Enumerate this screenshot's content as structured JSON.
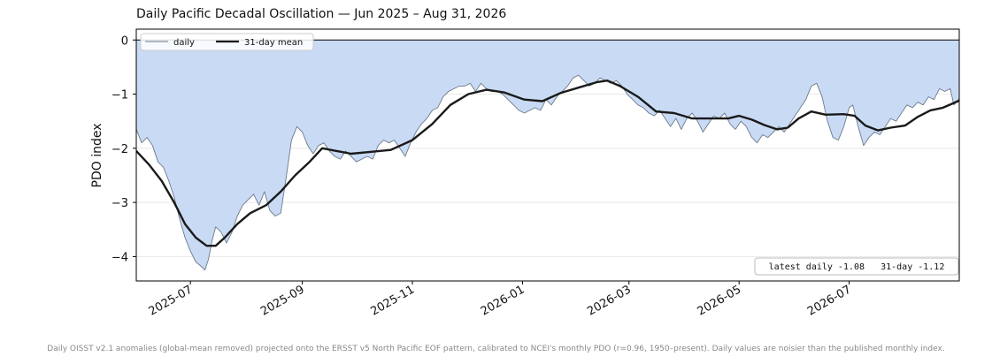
{
  "title": "Daily Pacific Decadal Oscillation — Jun 2025 – Aug 31, 2026",
  "footnote": "Daily OISST v2.1 anomalies (global-mean removed) projected onto the ERSST v5 North Pacific EOF pattern, calibrated to NCEI's monthly PDO (r=0.96, 1950–present). Daily values are noisier than the published monthly index.",
  "chart_data": {
    "type": "area",
    "ylabel": "PDO index",
    "xlim": [
      "2025-06-01",
      "2026-08-31"
    ],
    "ylim": [
      -4.45,
      0.2
    ],
    "yticks": [
      0,
      -1,
      -2,
      -3,
      -4
    ],
    "xticks": [
      "2025-07",
      "2025-09",
      "2025-11",
      "2026-01",
      "2026-03",
      "2026-05",
      "2026-07"
    ],
    "grid": "horizontal",
    "legend": {
      "position": "top-left",
      "entries": [
        "daily",
        "31-day mean"
      ]
    },
    "annotation": "latest daily -1.08   31-day -1.12",
    "colors": {
      "fill": "#c9daf4",
      "daily_line": "#6b7a8c",
      "mean_line": "#1a1a1a",
      "axis": "#000000",
      "grid": "#e8e8e8"
    },
    "series": [
      {
        "name": "daily",
        "points": [
          [
            "2025-06-01",
            -1.65
          ],
          [
            "2025-06-04",
            -1.9
          ],
          [
            "2025-06-07",
            -1.8
          ],
          [
            "2025-06-10",
            -1.95
          ],
          [
            "2025-06-13",
            -2.25
          ],
          [
            "2025-06-16",
            -2.35
          ],
          [
            "2025-06-19",
            -2.6
          ],
          [
            "2025-06-22",
            -2.9
          ],
          [
            "2025-06-25",
            -3.3
          ],
          [
            "2025-06-28",
            -3.65
          ],
          [
            "2025-07-01",
            -3.9
          ],
          [
            "2025-07-04",
            -4.1
          ],
          [
            "2025-07-07",
            -4.18
          ],
          [
            "2025-07-09",
            -4.25
          ],
          [
            "2025-07-11",
            -4.05
          ],
          [
            "2025-07-13",
            -3.7
          ],
          [
            "2025-07-15",
            -3.45
          ],
          [
            "2025-07-18",
            -3.55
          ],
          [
            "2025-07-21",
            -3.75
          ],
          [
            "2025-07-24",
            -3.55
          ],
          [
            "2025-07-27",
            -3.25
          ],
          [
            "2025-07-30",
            -3.05
          ],
          [
            "2025-08-02",
            -2.95
          ],
          [
            "2025-08-05",
            -2.85
          ],
          [
            "2025-08-08",
            -3.05
          ],
          [
            "2025-08-11",
            -2.8
          ],
          [
            "2025-08-14",
            -3.15
          ],
          [
            "2025-08-17",
            -3.25
          ],
          [
            "2025-08-20",
            -3.2
          ],
          [
            "2025-08-23",
            -2.55
          ],
          [
            "2025-08-26",
            -1.85
          ],
          [
            "2025-08-29",
            -1.6
          ],
          [
            "2025-09-01",
            -1.7
          ],
          [
            "2025-09-04",
            -1.95
          ],
          [
            "2025-09-07",
            -2.1
          ],
          [
            "2025-09-10",
            -1.95
          ],
          [
            "2025-09-13",
            -1.9
          ],
          [
            "2025-09-16",
            -2.05
          ],
          [
            "2025-09-19",
            -2.15
          ],
          [
            "2025-09-22",
            -2.2
          ],
          [
            "2025-09-25",
            -2.05
          ],
          [
            "2025-09-28",
            -2.15
          ],
          [
            "2025-10-01",
            -2.25
          ],
          [
            "2025-10-04",
            -2.2
          ],
          [
            "2025-10-07",
            -2.15
          ],
          [
            "2025-10-10",
            -2.2
          ],
          [
            "2025-10-13",
            -1.95
          ],
          [
            "2025-10-16",
            -1.85
          ],
          [
            "2025-10-19",
            -1.9
          ],
          [
            "2025-10-22",
            -1.85
          ],
          [
            "2025-10-25",
            -2.0
          ],
          [
            "2025-10-28",
            -2.15
          ],
          [
            "2025-10-31",
            -1.9
          ],
          [
            "2025-11-03",
            -1.7
          ],
          [
            "2025-11-06",
            -1.55
          ],
          [
            "2025-11-09",
            -1.45
          ],
          [
            "2025-11-12",
            -1.3
          ],
          [
            "2025-11-15",
            -1.25
          ],
          [
            "2025-11-18",
            -1.05
          ],
          [
            "2025-11-21",
            -0.95
          ],
          [
            "2025-11-24",
            -0.9
          ],
          [
            "2025-11-27",
            -0.85
          ],
          [
            "2025-11-30",
            -0.85
          ],
          [
            "2025-12-03",
            -0.8
          ],
          [
            "2025-12-06",
            -0.95
          ],
          [
            "2025-12-09",
            -0.8
          ],
          [
            "2025-12-12",
            -0.9
          ],
          [
            "2025-12-15",
            -0.95
          ],
          [
            "2025-12-18",
            -0.95
          ],
          [
            "2025-12-21",
            -1.0
          ],
          [
            "2025-12-24",
            -1.1
          ],
          [
            "2025-12-27",
            -1.2
          ],
          [
            "2025-12-30",
            -1.3
          ],
          [
            "2026-01-02",
            -1.35
          ],
          [
            "2026-01-05",
            -1.3
          ],
          [
            "2026-01-08",
            -1.25
          ],
          [
            "2026-01-11",
            -1.3
          ],
          [
            "2026-01-14",
            -1.1
          ],
          [
            "2026-01-17",
            -1.2
          ],
          [
            "2026-01-20",
            -1.05
          ],
          [
            "2026-01-23",
            -0.95
          ],
          [
            "2026-01-26",
            -0.85
          ],
          [
            "2026-01-29",
            -0.7
          ],
          [
            "2026-02-01",
            -0.65
          ],
          [
            "2026-02-04",
            -0.75
          ],
          [
            "2026-02-07",
            -0.85
          ],
          [
            "2026-02-10",
            -0.8
          ],
          [
            "2026-02-13",
            -0.7
          ],
          [
            "2026-02-16",
            -0.75
          ],
          [
            "2026-02-19",
            -0.8
          ],
          [
            "2026-02-22",
            -0.75
          ],
          [
            "2026-02-25",
            -0.85
          ],
          [
            "2026-02-28",
            -1.0
          ],
          [
            "2026-03-03",
            -1.1
          ],
          [
            "2026-03-06",
            -1.2
          ],
          [
            "2026-03-09",
            -1.25
          ],
          [
            "2026-03-12",
            -1.35
          ],
          [
            "2026-03-15",
            -1.4
          ],
          [
            "2026-03-18",
            -1.3
          ],
          [
            "2026-03-21",
            -1.45
          ],
          [
            "2026-03-24",
            -1.6
          ],
          [
            "2026-03-27",
            -1.45
          ],
          [
            "2026-03-30",
            -1.65
          ],
          [
            "2026-04-02",
            -1.45
          ],
          [
            "2026-04-05",
            -1.35
          ],
          [
            "2026-04-08",
            -1.5
          ],
          [
            "2026-04-11",
            -1.7
          ],
          [
            "2026-04-14",
            -1.55
          ],
          [
            "2026-04-17",
            -1.4
          ],
          [
            "2026-04-20",
            -1.45
          ],
          [
            "2026-04-23",
            -1.35
          ],
          [
            "2026-04-26",
            -1.55
          ],
          [
            "2026-04-29",
            -1.65
          ],
          [
            "2026-05-02",
            -1.5
          ],
          [
            "2026-05-05",
            -1.6
          ],
          [
            "2026-05-08",
            -1.8
          ],
          [
            "2026-05-11",
            -1.9
          ],
          [
            "2026-05-14",
            -1.75
          ],
          [
            "2026-05-17",
            -1.8
          ],
          [
            "2026-05-20",
            -1.7
          ],
          [
            "2026-05-23",
            -1.6
          ],
          [
            "2026-05-26",
            -1.7
          ],
          [
            "2026-05-29",
            -1.55
          ],
          [
            "2026-06-01",
            -1.4
          ],
          [
            "2026-06-04",
            -1.25
          ],
          [
            "2026-06-07",
            -1.1
          ],
          [
            "2026-06-10",
            -0.85
          ],
          [
            "2026-06-13",
            -0.8
          ],
          [
            "2026-06-16",
            -1.05
          ],
          [
            "2026-06-19",
            -1.5
          ],
          [
            "2026-06-22",
            -1.8
          ],
          [
            "2026-06-25",
            -1.85
          ],
          [
            "2026-06-28",
            -1.6
          ],
          [
            "2026-07-01",
            -1.25
          ],
          [
            "2026-07-03",
            -1.2
          ],
          [
            "2026-07-06",
            -1.6
          ],
          [
            "2026-07-09",
            -1.95
          ],
          [
            "2026-07-12",
            -1.8
          ],
          [
            "2026-07-15",
            -1.7
          ],
          [
            "2026-07-18",
            -1.75
          ],
          [
            "2026-07-21",
            -1.6
          ],
          [
            "2026-07-24",
            -1.45
          ],
          [
            "2026-07-27",
            -1.5
          ],
          [
            "2026-07-30",
            -1.35
          ],
          [
            "2026-08-02",
            -1.2
          ],
          [
            "2026-08-05",
            -1.25
          ],
          [
            "2026-08-08",
            -1.15
          ],
          [
            "2026-08-11",
            -1.2
          ],
          [
            "2026-08-14",
            -1.05
          ],
          [
            "2026-08-17",
            -1.1
          ],
          [
            "2026-08-20",
            -0.9
          ],
          [
            "2026-08-23",
            -0.95
          ],
          [
            "2026-08-26",
            -0.9
          ],
          [
            "2026-08-28",
            -1.2
          ],
          [
            "2026-08-31",
            -1.08
          ]
        ]
      },
      {
        "name": "31-day mean",
        "points": [
          [
            "2025-06-01",
            -2.05
          ],
          [
            "2025-06-08",
            -2.3
          ],
          [
            "2025-06-15",
            -2.6
          ],
          [
            "2025-06-22",
            -3.0
          ],
          [
            "2025-06-28",
            -3.4
          ],
          [
            "2025-07-04",
            -3.65
          ],
          [
            "2025-07-10",
            -3.8
          ],
          [
            "2025-07-15",
            -3.8
          ],
          [
            "2025-07-20",
            -3.65
          ],
          [
            "2025-07-27",
            -3.4
          ],
          [
            "2025-08-03",
            -3.2
          ],
          [
            "2025-08-12",
            -3.05
          ],
          [
            "2025-08-20",
            -2.8
          ],
          [
            "2025-08-28",
            -2.5
          ],
          [
            "2025-09-05",
            -2.25
          ],
          [
            "2025-09-12",
            -2.0
          ],
          [
            "2025-09-20",
            -2.05
          ],
          [
            "2025-09-28",
            -2.1
          ],
          [
            "2025-10-08",
            -2.07
          ],
          [
            "2025-10-20",
            -2.03
          ],
          [
            "2025-11-01",
            -1.85
          ],
          [
            "2025-11-12",
            -1.55
          ],
          [
            "2025-11-22",
            -1.2
          ],
          [
            "2025-12-02",
            -1.0
          ],
          [
            "2025-12-12",
            -0.92
          ],
          [
            "2025-12-22",
            -0.97
          ],
          [
            "2026-01-02",
            -1.1
          ],
          [
            "2026-01-12",
            -1.13
          ],
          [
            "2026-01-22",
            -0.98
          ],
          [
            "2026-02-01",
            -0.88
          ],
          [
            "2026-02-11",
            -0.78
          ],
          [
            "2026-02-17",
            -0.75
          ],
          [
            "2026-02-24",
            -0.85
          ],
          [
            "2026-03-06",
            -1.05
          ],
          [
            "2026-03-16",
            -1.32
          ],
          [
            "2026-03-26",
            -1.35
          ],
          [
            "2026-04-05",
            -1.45
          ],
          [
            "2026-04-18",
            -1.45
          ],
          [
            "2026-04-25",
            -1.45
          ],
          [
            "2026-05-01",
            -1.4
          ],
          [
            "2026-05-08",
            -1.47
          ],
          [
            "2026-05-15",
            -1.57
          ],
          [
            "2026-05-22",
            -1.65
          ],
          [
            "2026-05-28",
            -1.62
          ],
          [
            "2026-06-03",
            -1.45
          ],
          [
            "2026-06-10",
            -1.32
          ],
          [
            "2026-06-18",
            -1.38
          ],
          [
            "2026-06-28",
            -1.37
          ],
          [
            "2026-07-04",
            -1.4
          ],
          [
            "2026-07-10",
            -1.58
          ],
          [
            "2026-07-17",
            -1.67
          ],
          [
            "2026-07-24",
            -1.62
          ],
          [
            "2026-08-01",
            -1.58
          ],
          [
            "2026-08-08",
            -1.42
          ],
          [
            "2026-08-15",
            -1.3
          ],
          [
            "2026-08-22",
            -1.25
          ],
          [
            "2026-08-31",
            -1.12
          ]
        ]
      }
    ]
  }
}
